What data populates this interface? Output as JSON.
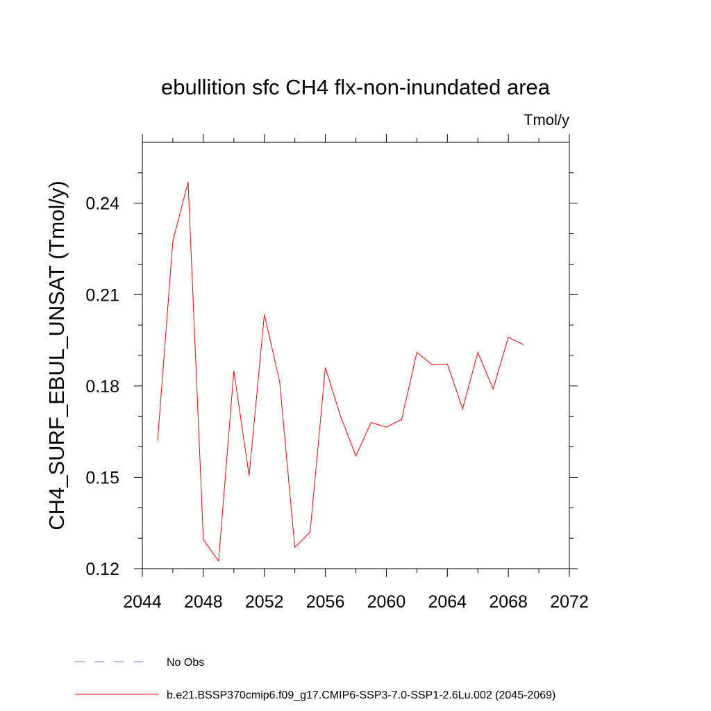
{
  "chart_data": {
    "type": "line",
    "title": "ebullition sfc CH4 flx-non-inundated area",
    "units_label": "Tmol/y",
    "ylabel": "CH4_SURF_EBUL_UNSAT  (Tmol/y)",
    "xlabel": "",
    "xlim": [
      2044,
      2072
    ],
    "ylim": [
      0.12,
      0.26
    ],
    "x_ticks": [
      2044,
      2048,
      2052,
      2056,
      2060,
      2064,
      2068,
      2072
    ],
    "y_ticks": [
      0.12,
      0.15,
      0.18,
      0.21,
      0.24
    ],
    "x_tick_labels": [
      "2044",
      "2048",
      "2052",
      "2056",
      "2060",
      "2064",
      "2068",
      "2072"
    ],
    "y_tick_labels": [
      "0.12",
      "0.15",
      "0.18",
      "0.21",
      "0.24"
    ],
    "series": [
      {
        "name": "b.e21.BSSP370cmip6.f09_g17.CMIP6-SSP3-7.0-SSP1-2.6Lu.002 (2045-2069)",
        "color": "#ff0000",
        "x": [
          2045,
          2046,
          2047,
          2048,
          2049,
          2050,
          2051,
          2052,
          2053,
          2054,
          2055,
          2056,
          2057,
          2058,
          2059,
          2060,
          2061,
          2062,
          2063,
          2064,
          2065,
          2066,
          2067,
          2068,
          2069
        ],
        "values": [
          0.162,
          0.2275,
          0.247,
          0.1295,
          0.1225,
          0.185,
          0.1505,
          0.2035,
          0.1815,
          0.127,
          0.132,
          0.186,
          0.17,
          0.157,
          0.168,
          0.1665,
          0.169,
          0.191,
          0.187,
          0.1872,
          0.1725,
          0.191,
          0.179,
          0.196,
          0.1935
        ]
      }
    ],
    "legend": [
      {
        "label": "No Obs",
        "color": "#7777bb",
        "style": "dashed"
      },
      {
        "label": "b.e21.BSSP370cmip6.f09_g17.CMIP6-SSP3-7.0-SSP1-2.6Lu.002 (2045-2069)",
        "color": "#ff0000",
        "style": "solid"
      }
    ],
    "grid": false,
    "legend_position": "bottom"
  }
}
